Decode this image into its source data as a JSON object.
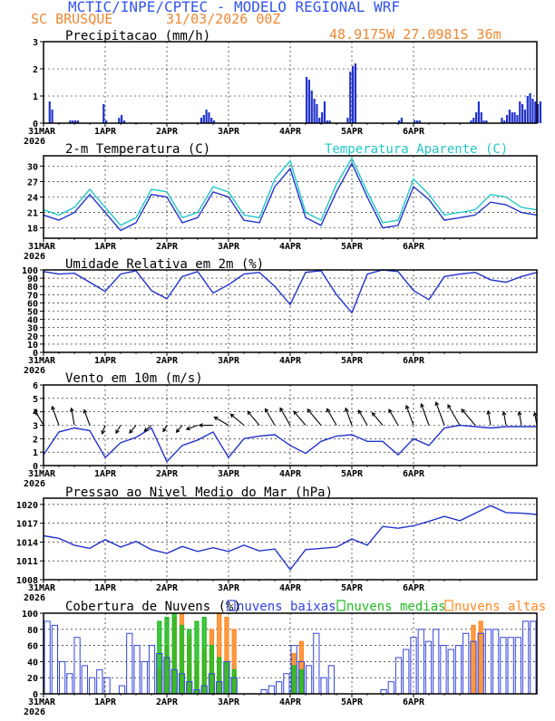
{
  "header": {
    "title": "MCTIC/INPE/CPTEC - MODELO REGIONAL WRF",
    "location": "SC BRUSQUE",
    "run": "31/03/2026 00Z",
    "coords": "48.9175W 27.0981S 36m"
  },
  "colors": {
    "header_blue": "#3355ee",
    "orange": "#ee8833",
    "series_blue": "#2233cc",
    "cyan": "#22c8c8",
    "low_clouds": "#3344dd",
    "mid_clouds": "#22bb22",
    "high_clouds": "#ff8822"
  },
  "x_ticks": [
    "31MAR",
    "1APR",
    "2APR",
    "3APR",
    "4APR",
    "5APR",
    "6APR"
  ],
  "x_year": "2026",
  "chart_data": [
    {
      "id": "precip",
      "type": "bar",
      "title": "Precipitacao (mm/h)",
      "ylim": [
        0,
        3
      ],
      "yticks": [
        "0",
        "1",
        "2",
        "3"
      ],
      "x_unit": "hours since 31/03/2026 00Z",
      "x": [
        2,
        3,
        10,
        11,
        12,
        13,
        23,
        24,
        29,
        30,
        31,
        61,
        62,
        63,
        64,
        65,
        66,
        102,
        103,
        104,
        105,
        106,
        107,
        108,
        109,
        110,
        111,
        118,
        119,
        120,
        121,
        138,
        139,
        144,
        145,
        146,
        166,
        167,
        168,
        169,
        170,
        171,
        172,
        178,
        179,
        180,
        181,
        182,
        183,
        184,
        185,
        186,
        187,
        188,
        189,
        190,
        191,
        192,
        193
      ],
      "values": [
        0.8,
        0.5,
        0.1,
        0.1,
        0.1,
        0.1,
        0.7,
        0.1,
        0.2,
        0.3,
        0.1,
        0.2,
        0.3,
        0.5,
        0.4,
        0.2,
        0.1,
        1.7,
        1.6,
        1.2,
        0.9,
        0.7,
        0.2,
        0.4,
        0.8,
        0.1,
        0.1,
        0.2,
        1.9,
        2.1,
        2.2,
        0.1,
        0.2,
        0.1,
        0.1,
        0.1,
        0.1,
        0.2,
        0.4,
        0.8,
        0.4,
        0.1,
        0.1,
        0.2,
        0.1,
        0.3,
        0.5,
        0.4,
        0.4,
        0.3,
        0.8,
        0.7,
        0.5,
        1.0,
        1.1,
        0.9,
        0.8,
        0.7,
        0.8
      ]
    },
    {
      "id": "temp",
      "type": "line",
      "title": "2-m Temperatura (C)",
      "title_apparent": "Temperatura Aparente (C)",
      "ylim": [
        16,
        32
      ],
      "yticks": [
        "18",
        "21",
        "24",
        "27",
        "30"
      ],
      "x_unit": "hours since 31/03/2026 00Z",
      "x": [
        0,
        6,
        12,
        18,
        24,
        30,
        36,
        42,
        48,
        54,
        60,
        66,
        72,
        78,
        84,
        90,
        96,
        102,
        108,
        114,
        120,
        126,
        132,
        138,
        144,
        150,
        156,
        162,
        168,
        174,
        180,
        186,
        192
      ],
      "series": [
        {
          "name": "Temperatura",
          "values": [
            20.5,
            19.5,
            21,
            24.5,
            21,
            17.5,
            19,
            24.5,
            24,
            19,
            20,
            25,
            24,
            19.5,
            19,
            26,
            29.5,
            20,
            18.5,
            25,
            30.5,
            24,
            18,
            18.5,
            26,
            23.5,
            19.5,
            20,
            20.5,
            23,
            22.5,
            21,
            20.5
          ]
        },
        {
          "name": "Temperatura Aparente",
          "values": [
            21.5,
            20.5,
            22,
            25.5,
            22,
            18.5,
            20,
            25.5,
            25,
            20,
            21,
            26,
            25,
            20.5,
            20,
            27.5,
            31,
            21,
            19.5,
            26.5,
            31.5,
            25,
            19,
            19.5,
            27.5,
            24.5,
            20.5,
            21,
            21.5,
            24.5,
            24,
            22,
            21.5
          ]
        }
      ]
    },
    {
      "id": "rh",
      "type": "line",
      "title": "Umidade Relativa em 2m (%)",
      "ylim": [
        0,
        100
      ],
      "yticks": [
        "0",
        "10",
        "20",
        "30",
        "40",
        "50",
        "60",
        "70",
        "80",
        "90",
        "100"
      ],
      "x_unit": "hours since 31/03/2026 00Z",
      "x": [
        0,
        6,
        12,
        18,
        24,
        30,
        36,
        42,
        48,
        54,
        60,
        66,
        72,
        78,
        84,
        90,
        96,
        102,
        108,
        114,
        120,
        126,
        132,
        138,
        144,
        150,
        156,
        162,
        168,
        174,
        180,
        186,
        192
      ],
      "values": [
        98,
        95,
        96,
        85,
        74,
        95,
        99,
        75,
        65,
        92,
        98,
        72,
        82,
        95,
        97,
        80,
        58,
        97,
        99,
        70,
        48,
        95,
        100,
        98,
        75,
        64,
        92,
        95,
        97,
        88,
        85,
        92,
        97
      ]
    },
    {
      "id": "wind",
      "type": "line",
      "title": "Vento em 10m (m/s)",
      "ylim": [
        0,
        6
      ],
      "yticks": [
        "0",
        "1",
        "2",
        "3",
        "4",
        "5",
        "6"
      ],
      "x_unit": "hours since 31/03/2026 00Z",
      "x": [
        0,
        6,
        12,
        18,
        24,
        30,
        36,
        42,
        48,
        54,
        60,
        66,
        72,
        78,
        84,
        90,
        96,
        102,
        108,
        114,
        120,
        126,
        132,
        138,
        144,
        150,
        156,
        162,
        168,
        174,
        180,
        186,
        192
      ],
      "values": [
        0.8,
        2.5,
        2.8,
        2.6,
        0.6,
        1.7,
        2.1,
        2.8,
        0.3,
        1.5,
        1.9,
        2.5,
        0.6,
        2.0,
        2.2,
        2.3,
        1.5,
        0.9,
        1.8,
        2.2,
        2.3,
        1.8,
        1.8,
        0.8,
        2.0,
        1.5,
        2.8,
        3.0,
        2.9,
        2.8,
        2.9,
        2.9,
        2.9
      ],
      "barb_length": [
        3.6,
        3.8,
        3.5,
        3.4,
        2.6,
        2.6,
        2.7,
        2.6,
        2.4,
        2.6,
        2.9,
        3.1,
        3.4,
        3.5,
        3.6,
        3.7,
        3.8,
        3.6,
        3.9,
        3.7,
        3.6,
        3.5,
        3.4,
        3.6,
        3.9,
        4.1,
        4.3,
        4.2,
        3.9,
        3.2,
        3.1,
        3.1,
        3.0
      ],
      "barb_dir_deg": [
        120,
        110,
        100,
        110,
        250,
        240,
        230,
        220,
        240,
        230,
        200,
        180,
        150,
        140,
        130,
        120,
        120,
        130,
        130,
        120,
        110,
        120,
        130,
        120,
        110,
        110,
        110,
        120,
        130,
        100,
        100,
        100,
        100
      ]
    },
    {
      "id": "mslp",
      "type": "line",
      "title": "Pressao ao Nivel Medio do Mar (hPa)",
      "ylim": [
        1008,
        1021
      ],
      "yticks": [
        "1008",
        "1011",
        "1014",
        "1017",
        "1020"
      ],
      "x_unit": "hours since 31/03/2026 00Z",
      "x": [
        0,
        6,
        12,
        18,
        24,
        30,
        36,
        42,
        48,
        54,
        60,
        66,
        72,
        78,
        84,
        90,
        96,
        102,
        108,
        114,
        120,
        126,
        132,
        138,
        144,
        150,
        156,
        162,
        168,
        174,
        180,
        186,
        192
      ],
      "values": [
        1015,
        1014.6,
        1013.5,
        1013,
        1014.4,
        1013.2,
        1014.1,
        1012.8,
        1012.2,
        1013.3,
        1012.5,
        1013.1,
        1012.5,
        1013.5,
        1012.6,
        1012.9,
        1009.6,
        1012.8,
        1013,
        1013.2,
        1014.5,
        1013.5,
        1016.5,
        1016.2,
        1016.6,
        1017.3,
        1018.1,
        1017.4,
        1018.6,
        1019.8,
        1018.7,
        1018.6,
        1018.4
      ]
    },
    {
      "id": "clouds",
      "type": "bar",
      "title": "Cobertura de Nuvens (%)",
      "legend": [
        "nuvens baixas",
        "nuvens medias",
        "nuvens altas"
      ],
      "ylim": [
        0,
        100
      ],
      "yticks": [
        "0",
        "20",
        "40",
        "60",
        "80",
        "100"
      ],
      "x_unit": "3-hourly steps from 31/03/2026 00Z",
      "series": [
        {
          "name": "nuvens baixas",
          "values": [
            90,
            85,
            40,
            25,
            70,
            35,
            20,
            30,
            20,
            0,
            10,
            75,
            60,
            40,
            60,
            50,
            45,
            30,
            25,
            15,
            5,
            10,
            25,
            15,
            40,
            20,
            0,
            0,
            0,
            5,
            10,
            15,
            25,
            60,
            40,
            35,
            75,
            20,
            35,
            0,
            0,
            0,
            0,
            0,
            0,
            5,
            15,
            45,
            55,
            70,
            80,
            65,
            80,
            60,
            55,
            60,
            75,
            65,
            75,
            80,
            80,
            70,
            70,
            70,
            90,
            90
          ]
        },
        {
          "name": "nuvens medias",
          "values": [
            0,
            0,
            0,
            0,
            0,
            0,
            0,
            0,
            0,
            0,
            0,
            0,
            0,
            0,
            0,
            90,
            95,
            100,
            85,
            80,
            90,
            95,
            60,
            45,
            40,
            30,
            0,
            0,
            0,
            0,
            0,
            0,
            0,
            35,
            30,
            0,
            0,
            0,
            0,
            0,
            0,
            0,
            0,
            0,
            0,
            0,
            0,
            0,
            0,
            0,
            0,
            0,
            0,
            0,
            0,
            0,
            0,
            0,
            0,
            0,
            0,
            0,
            0,
            0,
            0,
            0
          ]
        },
        {
          "name": "nuvens altas",
          "values": [
            0,
            0,
            0,
            0,
            0,
            0,
            0,
            0,
            0,
            0,
            0,
            0,
            0,
            0,
            0,
            30,
            60,
            95,
            100,
            70,
            40,
            55,
            80,
            100,
            95,
            80,
            0,
            0,
            0,
            0,
            0,
            0,
            0,
            50,
            65,
            0,
            0,
            0,
            0,
            0,
            0,
            0,
            0,
            0,
            0,
            0,
            0,
            0,
            0,
            0,
            0,
            0,
            0,
            0,
            0,
            0,
            0,
            85,
            90,
            0,
            0,
            0,
            0,
            0,
            0,
            0
          ]
        }
      ]
    }
  ]
}
